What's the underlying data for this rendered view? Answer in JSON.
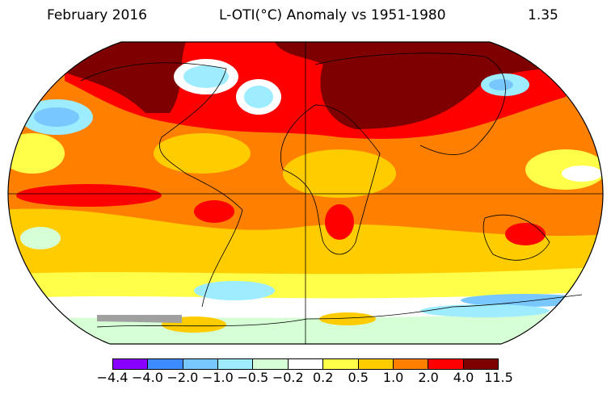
{
  "header": {
    "period": "February 2016",
    "title": "L-OTI(°C) Anomaly vs 1951-1980",
    "global_mean": "1.35"
  },
  "map": {
    "projection": "robinson",
    "missing_data_color": "#a0a0a0"
  },
  "colorbar": {
    "ticks": [
      "−4.4",
      "−4.0",
      "−2.0",
      "−1.0",
      "−0.5",
      "−0.2",
      "0.2",
      "0.5",
      "1.0",
      "2.0",
      "4.0",
      "11.5"
    ],
    "colors": [
      "#8a00ff",
      "#3c8cff",
      "#78c8ff",
      "#9eecff",
      "#d6ffd6",
      "#ffffff",
      "#ffff4a",
      "#ffcc00",
      "#ff7f00",
      "#ff0000",
      "#7f0000"
    ]
  }
}
